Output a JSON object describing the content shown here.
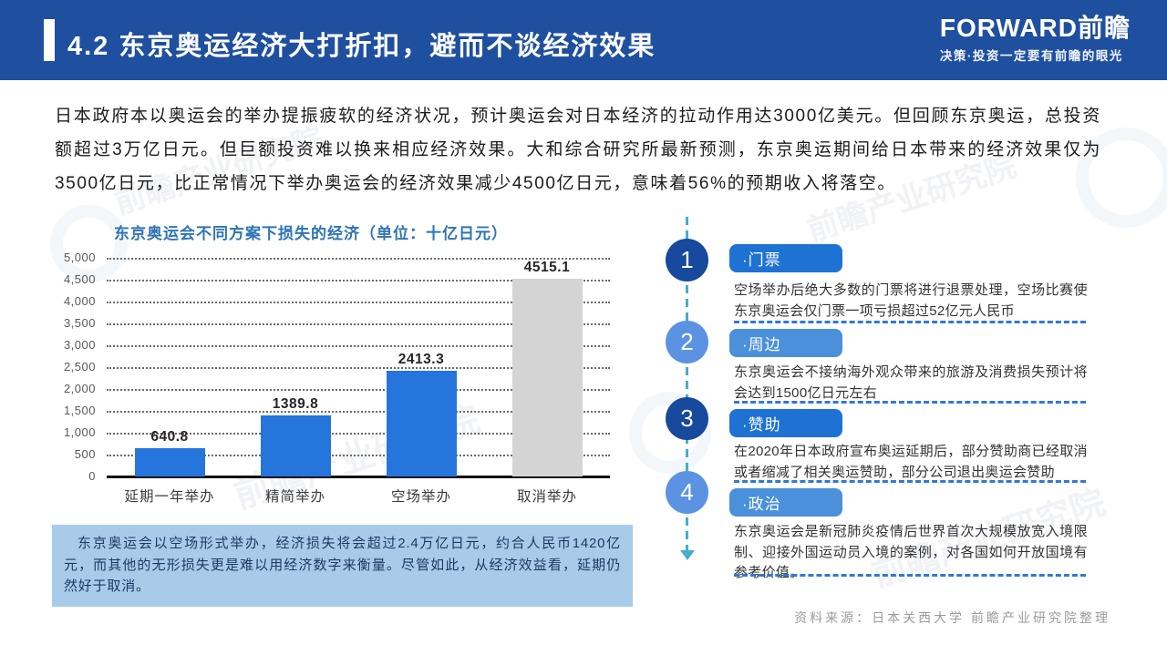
{
  "header": {
    "title": "4.2 东京奥运经济大打折扣，避而不谈经济效果",
    "logo_text": "FORWARD前瞻",
    "logo_tagline": "决策·投资一定要有前瞻的眼光"
  },
  "intro": "日本政府本以奥运会的举办提振疲软的经济状况，预计奥运会对日本经济的拉动作用达3000亿美元。但回顾东京奥运，总投资额超过3万亿日元。但巨额投资难以换来相应经济效果。大和综合研究所最新预测，东京奥运期间给日本带来的经济效果仅为3500亿日元，比正常情况下举办奥运会的经济效果减少4500亿日元，意味着56%的预期收入将落空。",
  "chart_data": {
    "type": "bar",
    "title": "东京奥运会不同方案下损失的经济（单位：十亿日元）",
    "categories": [
      "延期一年举办",
      "精简举办",
      "空场举办",
      "取消举办"
    ],
    "values": [
      640.8,
      1389.8,
      2413.3,
      4515.1
    ],
    "value_labels": [
      "640.8",
      "1389.8",
      "2413.3",
      "4515.1"
    ],
    "bar_colors": [
      "#2575DC",
      "#2575DC",
      "#2575DC",
      "#D4D4D4"
    ],
    "ylim": [
      0,
      5000
    ],
    "ytick_step": 500,
    "yticks": [
      "5,000",
      "4,500",
      "4,000",
      "3,500",
      "3,000",
      "2,500",
      "2,000",
      "1,500",
      "1,000",
      "500",
      "0"
    ],
    "grid": "dotted horizontal",
    "legend": "none"
  },
  "note_box": {
    "text": "东京奥运会以空场形式举办，经济损失将会超过2.4万亿日元，约合人民币1420亿元，而其他的无形损失更是难以用经济数字来衡量。尽管如此，从经济效益看，延期仍然好于取消。"
  },
  "timeline": {
    "items": [
      {
        "num": "1",
        "label": "·门票",
        "desc": "空场举办后绝大多数的门票将进行退票处理，空场比赛使东京奥运会仅门票一项亏损超过52亿元人民币"
      },
      {
        "num": "2",
        "label": "·周边",
        "desc": "东京奥运会不接纳海外观众带来的旅游及消费损失预计将会达到1500亿日元左右"
      },
      {
        "num": "3",
        "label": "·赞助",
        "desc": "在2020年日本政府宣布奥运延期后，部分赞助商已经取消或者缩减了相关奥运赞助，部分公司退出奥运会赞助"
      },
      {
        "num": "4",
        "label": "·政治",
        "desc": "东京奥运会是新冠肺炎疫情后世界首次大规模放宽入境限制、迎接外国运动员入境的案例，对各国如何开放国境有参考价值。"
      }
    ]
  },
  "source": "资料来源：日本关西大学 前瞻产业研究院整理",
  "watermark": {
    "text": "前瞻产业研究院"
  },
  "colors": {
    "header_bg": "#1F4F9F",
    "bar_blue": "#2575DC",
    "bar_gray": "#D4D4D4",
    "chart_title": "#2E74B5",
    "note_bg": "#A9CBEA",
    "circle_dark": "#17499C",
    "circle_light": "#5B93E2",
    "label_dark": "#1E72D3",
    "label_light": "#4A90DA",
    "timeline_dash": "#45AECB"
  }
}
